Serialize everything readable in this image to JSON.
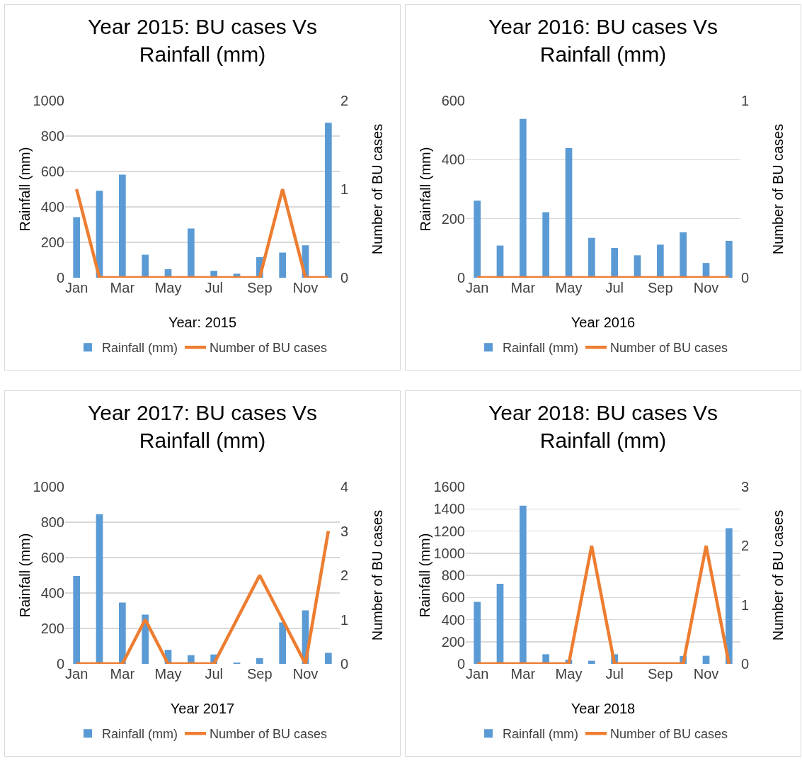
{
  "chart_data": [
    {
      "type": "bar",
      "title": "Year 2015: BU cases Vs Rainfall (mm)",
      "xlabel": "Year: 2015",
      "ylabel": "Rainfall (mm)",
      "y2label": "Number of BU cases",
      "categories": [
        "Jan",
        null,
        "Mar",
        null,
        "May",
        null,
        "Jul",
        null,
        "Sep",
        null,
        "Nov",
        null
      ],
      "ylim": [
        0,
        1000
      ],
      "yticks": [
        0,
        200,
        400,
        600,
        800,
        1000
      ],
      "y2lim": [
        0,
        2
      ],
      "y2ticks": [
        0,
        1,
        2
      ],
      "grid": "y",
      "legend": "bottom",
      "marker": "none",
      "series": [
        {
          "name": "Rainfall (mm)",
          "color": "#5b9bd5",
          "values": [
            342,
            491,
            582,
            130,
            48,
            278,
            39,
            23,
            116,
            142,
            183,
            875
          ]
        },
        {
          "name": "Number of BU cases",
          "type": "line",
          "axis": "y2",
          "color": "#ed7d31",
          "line_style": "solid",
          "values": [
            1,
            0,
            0,
            0,
            0,
            0,
            0,
            0,
            0,
            1,
            0,
            0
          ]
        }
      ]
    },
    {
      "type": "bar",
      "title": "Year 2016: BU cases Vs Rainfall (mm)",
      "xlabel": "Year 2016",
      "ylabel": "Rainfall (mm)",
      "y2label": "Number of BU cases",
      "categories": [
        "Jan",
        null,
        "Mar",
        null,
        "May",
        null,
        "Jul",
        null,
        "Sep",
        null,
        "Nov",
        null
      ],
      "ylim": [
        0,
        600
      ],
      "yticks": [
        0,
        200,
        400,
        600
      ],
      "y2lim": [
        0,
        1
      ],
      "y2ticks": [
        0,
        1
      ],
      "grid": "y",
      "legend": "bottom",
      "marker": "none",
      "series": [
        {
          "name": "Rainfall (mm)",
          "color": "#5b9bd5",
          "values": [
            261,
            109,
            538,
            222,
            439,
            135,
            101,
            76,
            112,
            154,
            50,
            125
          ]
        },
        {
          "name": "Number of BU cases",
          "type": "line",
          "axis": "y2",
          "color": "#ed7d31",
          "line_style": "solid",
          "values": [
            0,
            0,
            0,
            0,
            0,
            0,
            0,
            0,
            0,
            0,
            0,
            0
          ]
        }
      ]
    },
    {
      "type": "bar",
      "title": "Year 2017: BU cases Vs Rainfall (mm)",
      "xlabel": "Year 2017",
      "ylabel": "Rainfall (mm)",
      "y2label": "Number of BU cases",
      "categories": [
        "Jan",
        null,
        "Mar",
        null,
        "May",
        null,
        "Jul",
        null,
        "Sep",
        null,
        "Nov",
        null
      ],
      "ylim": [
        0,
        1000
      ],
      "yticks": [
        0,
        200,
        400,
        600,
        800,
        1000
      ],
      "y2lim": [
        0,
        4
      ],
      "y2ticks": [
        0,
        1,
        2,
        3,
        4
      ],
      "grid": "y",
      "legend": "bottom",
      "marker": "none",
      "series": [
        {
          "name": "Rainfall (mm)",
          "color": "#5b9bd5",
          "values": [
            496,
            845,
            346,
            278,
            79,
            49,
            53,
            7,
            32,
            234,
            302,
            62
          ]
        },
        {
          "name": "Number of BU cases",
          "type": "line",
          "axis": "y2",
          "color": "#ed7d31",
          "line_style": "solid",
          "values": [
            0,
            0,
            0,
            1,
            0,
            0,
            0,
            1,
            2,
            1,
            0,
            3
          ]
        }
      ]
    },
    {
      "type": "bar",
      "title": "Year 2018: BU cases Vs Rainfall (mm)",
      "xlabel": "Year 2018",
      "ylabel": "Rainfall (mm)",
      "y2label": "Number of BU cases",
      "categories": [
        "Jan",
        null,
        "Mar",
        null,
        "May",
        null,
        "Jul",
        null,
        "Sep",
        null,
        "Nov",
        null
      ],
      "ylim": [
        0,
        1600
      ],
      "yticks": [
        0,
        200,
        400,
        600,
        800,
        1000,
        1200,
        1400,
        1600
      ],
      "y2lim": [
        0,
        3
      ],
      "y2ticks": [
        0,
        1,
        2,
        3
      ],
      "grid": "y",
      "legend": "bottom",
      "marker": "none",
      "series": [
        {
          "name": "Rainfall (mm)",
          "color": "#5b9bd5",
          "values": [
            560,
            723,
            1429,
            87,
            37,
            28,
            87,
            0,
            0,
            70,
            73,
            1226
          ]
        },
        {
          "name": "Number of BU cases",
          "type": "line",
          "axis": "y2",
          "color": "#ed7d31",
          "line_style": "solid",
          "values": [
            0,
            0,
            0,
            0,
            0,
            2,
            0,
            0,
            0,
            0,
            2,
            0
          ]
        }
      ]
    }
  ]
}
